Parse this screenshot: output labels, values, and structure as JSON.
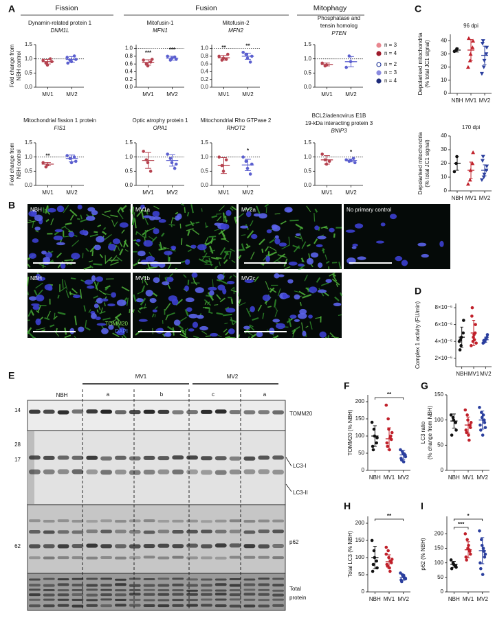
{
  "panel_labels": [
    "A",
    "B",
    "C",
    "D",
    "E",
    "F",
    "G",
    "H",
    "I"
  ],
  "sections": [
    "Fission",
    "Fusion",
    "Mitophagy"
  ],
  "legend": [
    {
      "label": "n = 3",
      "color": "#e8868f",
      "filled": true
    },
    {
      "label": "n = 4",
      "color": "#9e1b2b",
      "filled": true
    },
    {
      "label": "n = 2",
      "color": "#2b3f9e",
      "filled": false
    },
    {
      "label": "n = 3",
      "color": "#8b8be0",
      "filled": true
    },
    {
      "label": "n = 4",
      "color": "#1d2a7a",
      "filled": true
    }
  ],
  "microscopy": {
    "images": [
      "NBH",
      "MV1a",
      "MV2a",
      "No primary control",
      "NBH",
      "MV1b",
      "MV2c"
    ],
    "stains": [
      {
        "label": "TOMM20",
        "color": "#86dc5a"
      },
      {
        "label": "DAPI",
        "color": "#5b7dff"
      }
    ]
  },
  "blot": {
    "groups": [
      "NBH",
      "MV1",
      "MV2"
    ],
    "subgroups": [
      "a",
      "b",
      "c",
      "a"
    ],
    "markers": [
      14,
      28,
      17,
      62
    ],
    "bands": [
      "TOMM20",
      "LC3-I",
      "LC3-II",
      "p62"
    ],
    "loading": [
      "Total",
      "protein"
    ]
  },
  "chart_data": [
    {
      "type": "dotplot",
      "title": [
        "Dynamin-related protein 1"
      ],
      "subtitle": "DNM1L",
      "ylabel": [
        "Fold change from",
        "NBH control"
      ],
      "categories": [
        "MV1",
        "MV2"
      ],
      "colors": [
        "#b5424f",
        "#5b5fcf"
      ],
      "markers": [
        "circle",
        "circle"
      ],
      "points": [
        [
          0.95,
          0.85,
          0.78,
          1.0,
          0.9
        ],
        [
          1.05,
          0.95,
          0.9,
          1.1,
          0.98,
          0.85
        ]
      ],
      "mean": [
        0.9,
        0.98
      ],
      "error": [
        0.08,
        0.1
      ],
      "ylim": [
        0,
        1.5
      ],
      "yticks": [
        {
          "value": 0,
          "label": "0.0"
        },
        0.5,
        {
          "value": 1,
          "label": "1.0"
        },
        1.5
      ],
      "refline": 1
    },
    {
      "type": "dotplot",
      "title": [
        "Mitofusin-1"
      ],
      "subtitle": "MFN1",
      "categories": [
        "MV1",
        "MV2"
      ],
      "colors": [
        "#b5424f",
        "#5b5fcf"
      ],
      "markers": [
        "circle",
        "circle"
      ],
      "points": [
        [
          0.7,
          0.6,
          0.55,
          0.65,
          0.72
        ],
        [
          0.8,
          0.7,
          0.75,
          0.78,
          0.72
        ]
      ],
      "mean": [
        0.64,
        0.75
      ],
      "error": [
        0.07,
        0.05
      ],
      "ylim": [
        0,
        1.1
      ],
      "yticks": [
        {
          "value": 0,
          "label": "0.0"
        },
        0.2,
        0.4,
        0.6,
        0.8,
        {
          "value": 1,
          "label": "1.0"
        }
      ],
      "refline": 1,
      "significance": [
        "***",
        "***"
      ]
    },
    {
      "type": "dotplot",
      "title": [
        "Mitofusin-2"
      ],
      "subtitle": "MFN2",
      "categories": [
        "MV1",
        "MV2"
      ],
      "colors": [
        "#b5424f",
        "#5b5fcf"
      ],
      "markers": [
        "circle",
        "circle"
      ],
      "points": [
        [
          0.8,
          0.7,
          0.75,
          0.72,
          0.85
        ],
        [
          0.9,
          0.85,
          0.75,
          0.65,
          0.8
        ]
      ],
      "mean": [
        0.76,
        0.8
      ],
      "error": [
        0.06,
        0.08
      ],
      "ylim": [
        0,
        1.1
      ],
      "yticks": [
        {
          "value": 0,
          "label": "0.0"
        },
        0.2,
        0.4,
        0.6,
        0.8,
        {
          "value": 1,
          "label": "1.0"
        }
      ],
      "refline": 1,
      "significance": [
        "**",
        "**"
      ]
    },
    {
      "type": "dotplot",
      "title": [
        "Phosphatase and",
        "tensin homolog"
      ],
      "subtitle": "PTEN",
      "categories": [
        "MV1",
        "MV2"
      ],
      "colors": [
        "#b5424f",
        "#5b5fcf"
      ],
      "markers": [
        "circle",
        "circle"
      ],
      "points": [
        [
          0.85,
          0.75,
          0.78
        ],
        [
          0.7,
          1.1,
          0.9
        ]
      ],
      "mean": [
        0.8,
        0.9
      ],
      "error": [
        0.05,
        0.18
      ],
      "ylim": [
        0,
        1.5
      ],
      "yticks": [
        {
          "value": 0,
          "label": "0.0"
        },
        0.5,
        {
          "value": 1,
          "label": "1.0"
        },
        1.5
      ],
      "refline": 1
    },
    {
      "type": "dotplot",
      "title": [
        "Mitochondrial fission 1 protein"
      ],
      "subtitle": "FIS1",
      "ylabel": [
        "Fold change from",
        "NBH control"
      ],
      "categories": [
        "MV1",
        "MV2"
      ],
      "colors": [
        "#b5424f",
        "#5b5fcf"
      ],
      "markers": [
        "circle",
        "circle"
      ],
      "points": [
        [
          0.8,
          0.65,
          0.72
        ],
        [
          1.05,
          0.95,
          0.8,
          1.0,
          0.85
        ]
      ],
      "mean": [
        0.75,
        0.95
      ],
      "error": [
        0.06,
        0.12
      ],
      "ylim": [
        0,
        1.5
      ],
      "yticks": [
        {
          "value": 0,
          "label": "0.0"
        },
        0.5,
        {
          "value": 1,
          "label": "1.0"
        },
        1.5
      ],
      "refline": 1,
      "significance": [
        "**",
        null
      ]
    },
    {
      "type": "dotplot",
      "title": [
        "Optic atrophy protein 1"
      ],
      "subtitle": "OPA1",
      "categories": [
        "MV1",
        "MV2"
      ],
      "colors": [
        "#b5424f",
        "#5b5fcf"
      ],
      "markers": [
        "circle",
        "circle"
      ],
      "points": [
        [
          1.2,
          0.9,
          0.8,
          0.5
        ],
        [
          1.1,
          0.95,
          0.8,
          0.6,
          0.75
        ]
      ],
      "mean": [
        0.88,
        0.88
      ],
      "error": [
        0.28,
        0.2
      ],
      "ylim": [
        0,
        1.5
      ],
      "yticks": [
        {
          "value": 0,
          "label": "0.0"
        },
        0.5,
        {
          "value": 1,
          "label": "1.0"
        },
        1.5
      ],
      "refline": 1
    },
    {
      "type": "dotplot",
      "title": [
        "Mitochondrial Rho GTPase 2"
      ],
      "subtitle": "RHOT2",
      "categories": [
        "MV1",
        "MV2"
      ],
      "colors": [
        "#b5424f",
        "#5b5fcf"
      ],
      "markers": [
        "circle",
        "circle"
      ],
      "points": [
        [
          1.0,
          0.7,
          0.5,
          0.9
        ],
        [
          1.0,
          0.85,
          0.6,
          0.4,
          0.75
        ]
      ],
      "mean": [
        0.7,
        0.72
      ],
      "error": [
        0.28,
        0.2
      ],
      "ylim": [
        0,
        1.5
      ],
      "yticks": [
        {
          "value": 0,
          "label": "0.0"
        },
        0.5,
        {
          "value": 1,
          "label": "1.0"
        },
        1.5
      ],
      "refline": 1,
      "significance": [
        null,
        "*"
      ]
    },
    {
      "type": "dotplot",
      "title": [
        "BCL2/adenovirus E1B",
        "19-kDa interacting protein 3"
      ],
      "subtitle": "BNIP3",
      "categories": [
        "MV1",
        "MV2"
      ],
      "colors": [
        "#b5424f",
        "#5b5fcf"
      ],
      "markers": [
        "circle",
        "circle"
      ],
      "points": [
        [
          1.1,
          0.9,
          0.75,
          0.85
        ],
        [
          0.9,
          0.85,
          0.88,
          0.95,
          0.8
        ]
      ],
      "mean": [
        0.9,
        0.88
      ],
      "error": [
        0.15,
        0.05
      ],
      "ylim": [
        0,
        1.5
      ],
      "yticks": [
        {
          "value": 0,
          "label": "0.0"
        },
        0.5,
        {
          "value": 1,
          "label": "1.0"
        },
        1.5
      ],
      "refline": 1,
      "significance": [
        null,
        "*"
      ]
    },
    {
      "type": "dotplot",
      "title": [
        "96 dpi"
      ],
      "ylabel": [
        "Depolarised mitochondria",
        "(% total JC1 signal)"
      ],
      "categories": [
        "NBH",
        "MV1",
        "MV2"
      ],
      "colors": [
        "#111111",
        "#c0202a",
        "#2b3f9e"
      ],
      "markers": [
        "circle",
        "triangle",
        "triangle-down"
      ],
      "points": [
        [
          32,
          33,
          34
        ],
        [
          20,
          25,
          30,
          35,
          40,
          42
        ],
        [
          15,
          20,
          25,
          30,
          35,
          38,
          40
        ]
      ],
      "mean": [
        33,
        33,
        29
      ],
      "error": [
        1.5,
        8,
        7
      ],
      "ylim": [
        0,
        45
      ],
      "yticks": [
        0,
        10,
        20,
        30,
        40
      ]
    },
    {
      "type": "dotplot",
      "title": [
        "170 dpi"
      ],
      "ylabel": [
        "Depolarised mitochondria",
        "(% total JC1 signal)"
      ],
      "categories": [
        "NBH",
        "MV1",
        "MV2"
      ],
      "colors": [
        "#111111",
        "#c0202a",
        "#2b3f9e"
      ],
      "markers": [
        "circle",
        "triangle",
        "triangle-down"
      ],
      "points": [
        [
          14,
          20,
          25
        ],
        [
          5,
          8,
          15,
          20,
          28
        ],
        [
          8,
          10,
          12,
          15,
          18,
          22,
          25
        ]
      ],
      "mean": [
        20,
        15,
        15
      ],
      "error": [
        5,
        6,
        4
      ],
      "ylim": [
        0,
        40
      ],
      "yticks": [
        0,
        10,
        20,
        30,
        40
      ]
    },
    {
      "type": "dotplot",
      "ylabel": [
        "Complex 1 activity (FU/min)"
      ],
      "categories": [
        "NBH",
        "MV1",
        "MV2"
      ],
      "colors": [
        "#111111",
        "#c0202a",
        "#2b3f9e"
      ],
      "markers": [
        "circle",
        "circle",
        "circle"
      ],
      "points": [
        [
          4e-06,
          3.5e-06,
          4.5e-06,
          5e-06,
          6.5e-06,
          3e-06,
          4.2e-06
        ],
        [
          3.5e-06,
          4e-06,
          4.5e-06,
          5e-06,
          6e-06,
          7e-06,
          8e-06,
          4.8e-06,
          4.2e-06,
          3.8e-06
        ],
        [
          3.8e-06,
          4e-06,
          4.2e-06,
          4.5e-06,
          4.8e-06,
          4.1e-06,
          3.9e-06,
          4.3e-06
        ]
      ],
      "mean": [
        4.5e-06,
        5e-06,
        4.2e-06
      ],
      "error": [
        1.2e-06,
        1.5e-06,
        3e-07
      ],
      "ylim": [
        1e-06,
        8.5e-06
      ],
      "yticks": [
        {
          "value": 2e-06,
          "label": "2×10⁻⁶"
        },
        {
          "value": 4e-06,
          "label": "4×10⁻⁶"
        },
        {
          "value": 6e-06,
          "label": "6×10⁻⁶"
        },
        {
          "value": 8e-06,
          "label": "8×10⁻⁶"
        }
      ]
    },
    {
      "type": "dotplot",
      "ylabel": [
        "TOMM20 (% NBH)"
      ],
      "categories": [
        "NBH",
        "MV1",
        "MV2"
      ],
      "colors": [
        "#111111",
        "#c0202a",
        "#2b3f9e"
      ],
      "markers": [
        "circle",
        "circle",
        "circle"
      ],
      "points": [
        [
          140,
          120,
          100,
          80,
          95,
          70,
          60
        ],
        [
          190,
          150,
          120,
          100,
          90,
          80,
          70,
          60,
          95,
          110
        ],
        [
          60,
          55,
          50,
          45,
          40,
          35,
          30,
          25,
          48
        ]
      ],
      "mean": [
        100,
        92,
        45
      ],
      "error": [
        30,
        32,
        13
      ],
      "ylim": [
        0,
        220
      ],
      "yticks": [
        0,
        50,
        100,
        150,
        200
      ],
      "brackets": [
        {
          "groups": [
            "NBH",
            "MV2"
          ],
          "label": "**"
        }
      ]
    },
    {
      "type": "dotplot",
      "ylabel": [
        "LC3 ratio",
        "(% change from NBH)"
      ],
      "categories": [
        "NBH",
        "MV1",
        "MV2"
      ],
      "colors": [
        "#111111",
        "#c0202a",
        "#2b3f9e"
      ],
      "markers": [
        "circle",
        "circle",
        "circle"
      ],
      "points": [
        [
          110,
          105,
          100,
          95,
          80,
          70
        ],
        [
          120,
          110,
          100,
          90,
          85,
          80,
          75,
          70,
          60,
          95
        ],
        [
          125,
          115,
          105,
          100,
          95,
          90,
          80,
          70,
          110,
          85
        ]
      ],
      "mean": [
        98,
        90,
        100
      ],
      "error": [
        14,
        16,
        18
      ],
      "ylim": [
        0,
        150
      ],
      "yticks": [
        0,
        50,
        100,
        150
      ]
    },
    {
      "type": "dotplot",
      "ylabel": [
        "Total LC3 (% NBH)"
      ],
      "categories": [
        "NBH",
        "MV1",
        "MV2"
      ],
      "colors": [
        "#111111",
        "#c0202a",
        "#2b3f9e"
      ],
      "markers": [
        "circle",
        "circle",
        "circle"
      ],
      "points": [
        [
          150,
          120,
          100,
          90,
          70,
          60,
          80
        ],
        [
          130,
          120,
          100,
          90,
          85,
          80,
          75,
          70,
          60,
          95,
          110
        ],
        [
          55,
          50,
          45,
          40,
          38,
          35,
          30,
          48,
          42
        ]
      ],
      "mean": [
        100,
        88,
        42
      ],
      "error": [
        33,
        20,
        8
      ],
      "ylim": [
        0,
        220
      ],
      "yticks": [
        0,
        50,
        100,
        150,
        200
      ],
      "brackets": [
        {
          "groups": [
            "NBH",
            "MV2"
          ],
          "label": "**"
        }
      ]
    },
    {
      "type": "dotplot",
      "ylabel": [
        "p62 (% NBH)"
      ],
      "categories": [
        "NBH",
        "MV1",
        "MV2"
      ],
      "colors": [
        "#111111",
        "#c0202a",
        "#2b3f9e"
      ],
      "markers": [
        "circle",
        "circle",
        "circle"
      ],
      "points": [
        [
          110,
          100,
          95,
          90,
          85,
          80
        ],
        [
          200,
          180,
          150,
          140,
          130,
          120,
          110,
          160,
          145
        ],
        [
          210,
          180,
          160,
          140,
          120,
          100,
          80,
          60,
          150,
          130
        ]
      ],
      "mean": [
        95,
        145,
        142
      ],
      "error": [
        10,
        28,
        45
      ],
      "ylim": [
        0,
        260
      ],
      "yticks": [
        0,
        50,
        100,
        150,
        200
      ],
      "brackets": [
        {
          "groups": [
            "NBH",
            "MV1"
          ],
          "label": "***"
        },
        {
          "groups": [
            "NBH",
            "MV2"
          ],
          "label": "*"
        }
      ]
    }
  ]
}
